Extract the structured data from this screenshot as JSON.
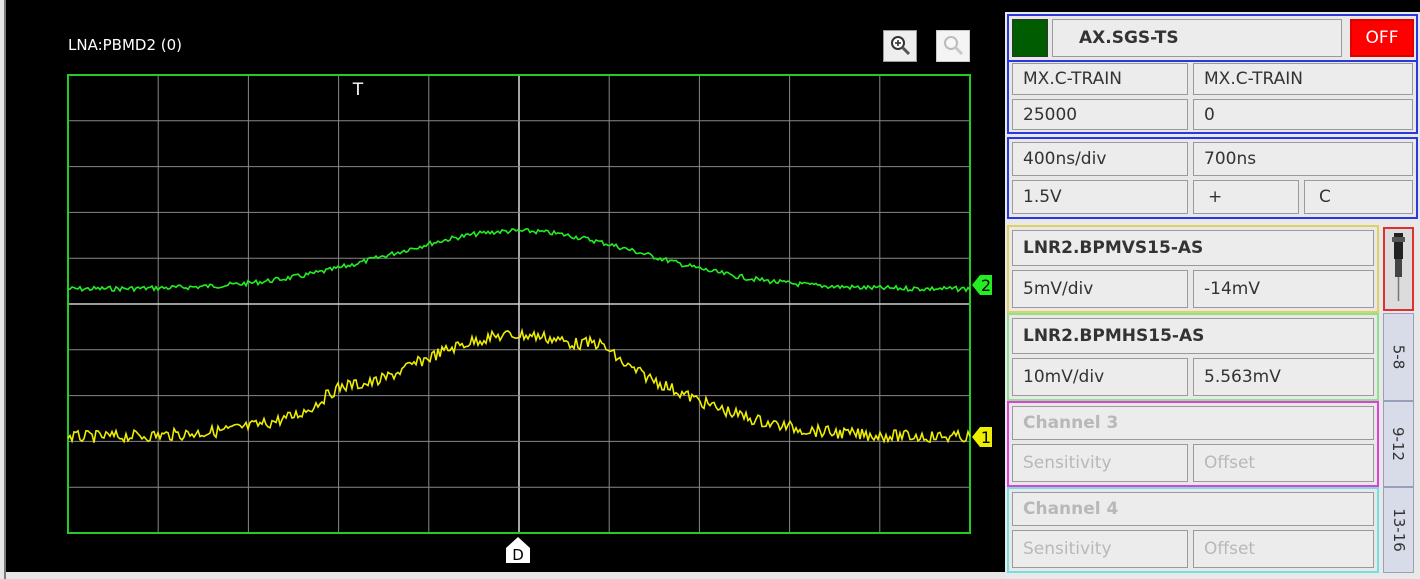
{
  "scope": {
    "title": "LNA:PBMD2 (0)",
    "trigger_marker": "T",
    "delay_marker": "D",
    "zoom_in_icon": "zoom-in-icon",
    "zoom_reset_icon": "zoom-out-icon",
    "grid_color": "#888888",
    "border_color": "#22cc22",
    "channels": [
      {
        "marker": "2",
        "color": "#22ee22"
      },
      {
        "marker": "1",
        "color": "#eeee00"
      }
    ]
  },
  "controls": {
    "device": "AX.SGS-TS",
    "status": "OFF",
    "status_led_color": "#005c00",
    "trigger_source_1": "MX.C-TRAIN",
    "trigger_source_2": "MX.C-TRAIN",
    "trigger_value_1": "25000",
    "trigger_value_2": "0",
    "timebase": "400ns/div",
    "delay": "700ns",
    "level": "1.5V",
    "slope": "+",
    "coupling": "C"
  },
  "channel_panels": [
    {
      "name": "LNR2.BPMVS15-AS",
      "sensitivity": "5mV/div",
      "offset": "-14mV"
    },
    {
      "name": "LNR2.BPMHS15-AS",
      "sensitivity": "10mV/div",
      "offset": "5.563mV"
    },
    {
      "name": "Channel 3",
      "sensitivity": "Sensitivity",
      "offset": "Offset"
    },
    {
      "name": "Channel 4",
      "sensitivity": "Sensitivity",
      "offset": "Offset"
    }
  ],
  "side_tabs": [
    "5-8",
    "9-12",
    "13-16"
  ]
}
